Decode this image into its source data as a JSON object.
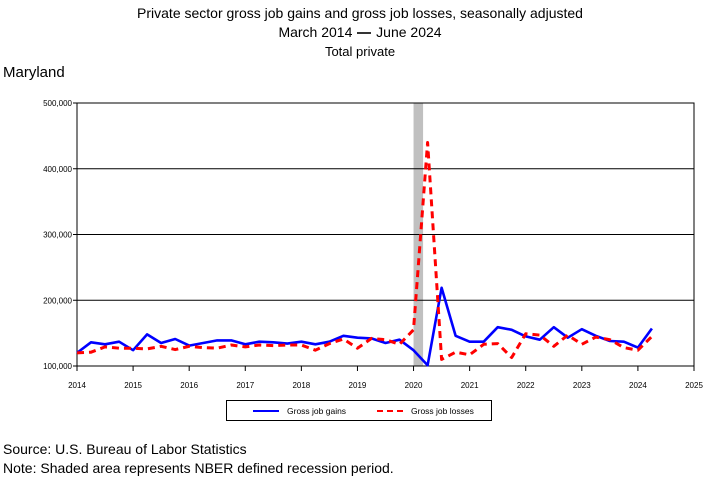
{
  "header": {
    "title": "Private sector gross job gains and gross job losses, seasonally adjusted",
    "period_start": "March 2014",
    "period_end": "June 2024",
    "subtitle": "Total private",
    "region": "Maryland"
  },
  "footer": {
    "source": "Source: U.S. Bureau of Labor Statistics",
    "note": "Note: Shaded area represents NBER defined recession period."
  },
  "chart_data": {
    "type": "line",
    "title": "Private sector gross job gains and gross job losses, seasonally adjusted",
    "xlabel": "",
    "ylabel": "",
    "xlim": [
      2014,
      2025
    ],
    "ylim": [
      100000,
      500000
    ],
    "x_ticks": [
      "2014",
      "2015",
      "2016",
      "2017",
      "2018",
      "2019",
      "2020",
      "2021",
      "2022",
      "2023",
      "2024",
      "2025"
    ],
    "y_ticks": [
      "100,000",
      "200,000",
      "300,000",
      "400,000",
      "500,000"
    ],
    "grid": "horizontal",
    "legend_position": "bottom",
    "recession": {
      "start": 2020.0,
      "end": 2020.17
    },
    "x": [
      2014.0,
      2014.25,
      2014.5,
      2014.75,
      2015.0,
      2015.25,
      2015.5,
      2015.75,
      2016.0,
      2016.25,
      2016.5,
      2016.75,
      2017.0,
      2017.25,
      2017.5,
      2017.75,
      2018.0,
      2018.25,
      2018.5,
      2018.75,
      2019.0,
      2019.25,
      2019.5,
      2019.75,
      2020.0,
      2020.25,
      2020.5,
      2020.75,
      2021.0,
      2021.25,
      2021.5,
      2021.75,
      2022.0,
      2022.25,
      2022.5,
      2022.75,
      2023.0,
      2023.25,
      2023.5,
      2023.75,
      2024.0,
      2024.25
    ],
    "series": [
      {
        "name": "Gross job gains",
        "color": "#0000ff",
        "style": "solid",
        "values": [
          120000,
          136000,
          133000,
          137000,
          124000,
          148000,
          135000,
          141000,
          131000,
          135000,
          139000,
          139000,
          133000,
          137000,
          136000,
          134000,
          137000,
          133000,
          137000,
          146000,
          143000,
          142000,
          135000,
          140000,
          124000,
          101000,
          219000,
          146000,
          137000,
          137000,
          159000,
          155000,
          145000,
          140000,
          159000,
          143000,
          156000,
          146000,
          138000,
          137000,
          128000,
          157000
        ]
      },
      {
        "name": "Gross job losses",
        "color": "#ff0000",
        "style": "dashed",
        "values": [
          120000,
          121000,
          129000,
          127000,
          127000,
          126000,
          130000,
          125000,
          130000,
          128000,
          127000,
          132000,
          129000,
          132000,
          131000,
          132000,
          132000,
          124000,
          134000,
          141000,
          127000,
          142000,
          140000,
          133000,
          155000,
          440000,
          110000,
          121000,
          117000,
          133000,
          134000,
          113000,
          149000,
          147000,
          130000,
          147000,
          133000,
          144000,
          140000,
          128000,
          124000,
          145000
        ]
      }
    ]
  }
}
